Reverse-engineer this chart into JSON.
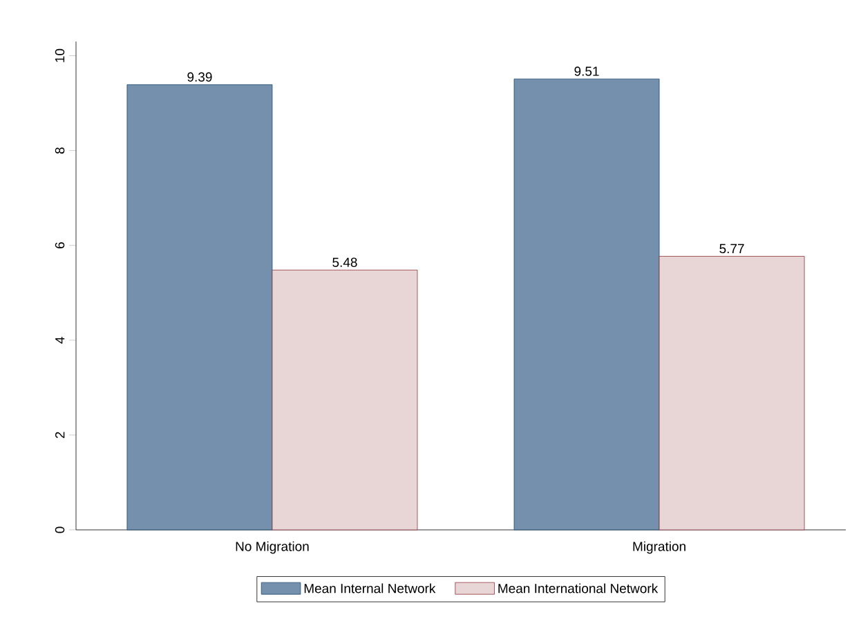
{
  "chart_data": {
    "type": "bar",
    "categories": [
      "No Migration",
      "Migration"
    ],
    "series": [
      {
        "name": "Mean Internal Network",
        "color": "#7590ad",
        "values": [
          9.39,
          9.51
        ]
      },
      {
        "name": "Mean International Network",
        "color": "#e8d5d6",
        "values": [
          5.48,
          5.77
        ]
      }
    ],
    "ylim": [
      0,
      10.3
    ],
    "yticks": [
      0,
      2,
      4,
      6,
      8,
      10
    ],
    "data_labels": true,
    "legend": "bottom",
    "grid": false
  }
}
